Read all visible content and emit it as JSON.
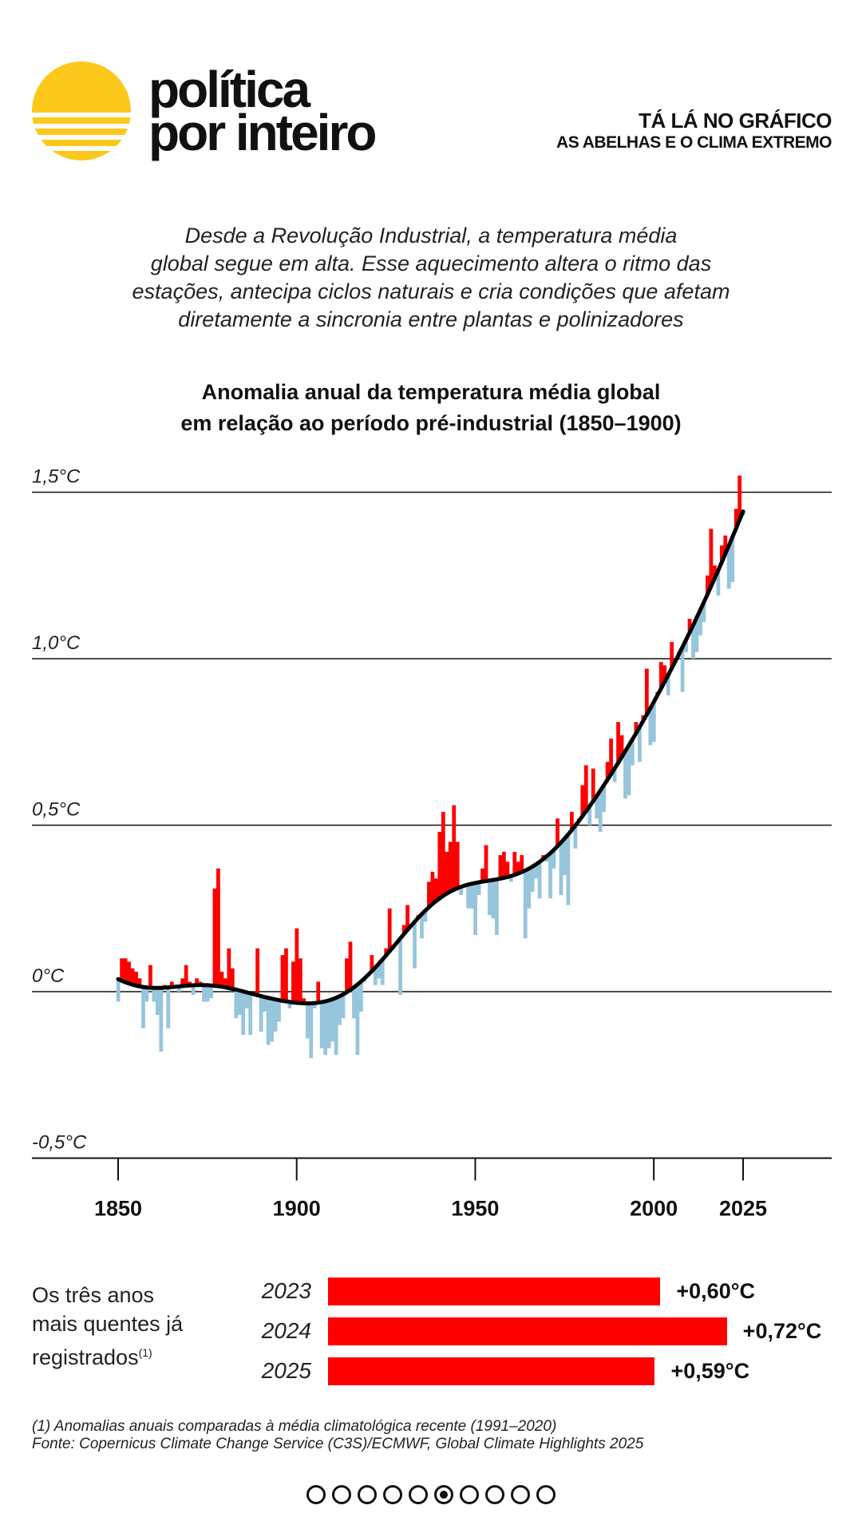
{
  "brand": {
    "line1": "política",
    "line2": "por inteiro",
    "sun_color": "#fdc81c"
  },
  "header": {
    "series": "TÁ LÁ NO GRÁFICO",
    "subtitle": "AS ABELHAS E O CLIMA EXTREMO"
  },
  "intro": [
    "Desde a Revolução Industrial, a temperatura média",
    "global segue em alta. Esse aquecimento altera o ritmo das",
    "estações, antecipa ciclos naturais e cria condições que afetam",
    "diretamente a sincronia entre plantas e polinizadores"
  ],
  "chart_data": [
    {
      "type": "bar",
      "title": [
        "Anomalia anual da temperatura média global",
        "em relação ao período pré-industrial (1850–1900)"
      ],
      "x_start": 1850,
      "x_end": 2025,
      "xticks": [
        "1850",
        "1900",
        "1950",
        "2000",
        "2025"
      ],
      "yticks": [
        {
          "value": 1.5,
          "label": "1,5°C"
        },
        {
          "value": 1.0,
          "label": "1,0°C"
        },
        {
          "value": 0.5,
          "label": "0,5°C"
        },
        {
          "value": 0,
          "label": "0°C"
        },
        {
          "value": -0.5,
          "label": "-0,5°C"
        }
      ],
      "ylim": [
        -0.5,
        1.5
      ],
      "grid": true,
      "note": "bars drawn from smoothed trend line to annual value; red above trend, blue below",
      "colors": {
        "above": "#ff0000",
        "below": "#96c5dc",
        "trend": "#000000"
      },
      "values": [
        -0.03,
        0.1,
        0.1,
        0.09,
        0.07,
        0.06,
        0.04,
        -0.11,
        -0.03,
        0.08,
        -0.03,
        -0.07,
        -0.18,
        0.02,
        -0.11,
        0.03,
        0.02,
        0.0,
        0.04,
        0.08,
        0.03,
        -0.01,
        0.04,
        0.03,
        -0.03,
        -0.03,
        -0.02,
        0.31,
        0.37,
        0.06,
        0.04,
        0.13,
        0.07,
        -0.08,
        -0.07,
        -0.13,
        -0.05,
        -0.13,
        0.0,
        0.13,
        -0.12,
        -0.06,
        -0.16,
        -0.15,
        -0.12,
        -0.09,
        0.11,
        0.13,
        -0.05,
        0.09,
        0.19,
        0.1,
        -0.02,
        -0.14,
        -0.2,
        -0.05,
        0.03,
        -0.17,
        -0.19,
        -0.17,
        -0.15,
        -0.19,
        -0.1,
        -0.08,
        0.1,
        0.15,
        -0.08,
        -0.19,
        -0.06,
        0.03,
        0.05,
        0.11,
        0.02,
        0.04,
        0.02,
        0.13,
        0.25,
        0.14,
        0.15,
        -0.01,
        0.2,
        0.26,
        0.2,
        0.07,
        0.23,
        0.16,
        0.21,
        0.33,
        0.36,
        0.34,
        0.48,
        0.54,
        0.42,
        0.45,
        0.56,
        0.45,
        0.29,
        0.32,
        0.25,
        0.25,
        0.17,
        0.29,
        0.37,
        0.44,
        0.23,
        0.22,
        0.17,
        0.41,
        0.42,
        0.39,
        0.33,
        0.42,
        0.39,
        0.41,
        0.16,
        0.25,
        0.3,
        0.34,
        0.28,
        0.41,
        0.39,
        0.28,
        0.37,
        0.52,
        0.29,
        0.35,
        0.26,
        0.54,
        0.43,
        0.52,
        0.62,
        0.68,
        0.5,
        0.67,
        0.52,
        0.48,
        0.54,
        0.69,
        0.76,
        0.63,
        0.81,
        0.77,
        0.58,
        0.59,
        0.68,
        0.81,
        0.69,
        0.83,
        0.97,
        0.74,
        0.75,
        0.9,
        0.99,
        0.98,
        0.89,
        1.05,
        0.99,
        1.02,
        0.9,
        1.02,
        1.12,
        1.0,
        1.02,
        1.07,
        1.11,
        1.25,
        1.39,
        1.28,
        1.19,
        1.34,
        1.37,
        1.21,
        1.23,
        1.45,
        1.55,
        1.43
      ]
    },
    {
      "type": "bar",
      "title": "Os três anos mais quentes já registrados",
      "footnote_mark": "(1)",
      "categories": [
        "2023",
        "2024",
        "2025"
      ],
      "values": [
        0.6,
        0.72,
        0.59
      ],
      "labels": [
        "+0,60°C",
        "+0,72°C",
        "+0,59°C"
      ],
      "color": "#ff0000"
    }
  ],
  "three_years": {
    "line1": "Os três anos",
    "line2": "mais quentes já",
    "line3": "registrados",
    "sup": "(1)"
  },
  "footnote": {
    "note": "(1) Anomalias anuais comparadas à média climatológica recente (1991–2020)",
    "source": "Fonte: Copernicus Climate Change Service (C3S)/ECMWF, Global Climate Highlights 2025"
  },
  "pager": {
    "total": 10,
    "current": 6
  }
}
